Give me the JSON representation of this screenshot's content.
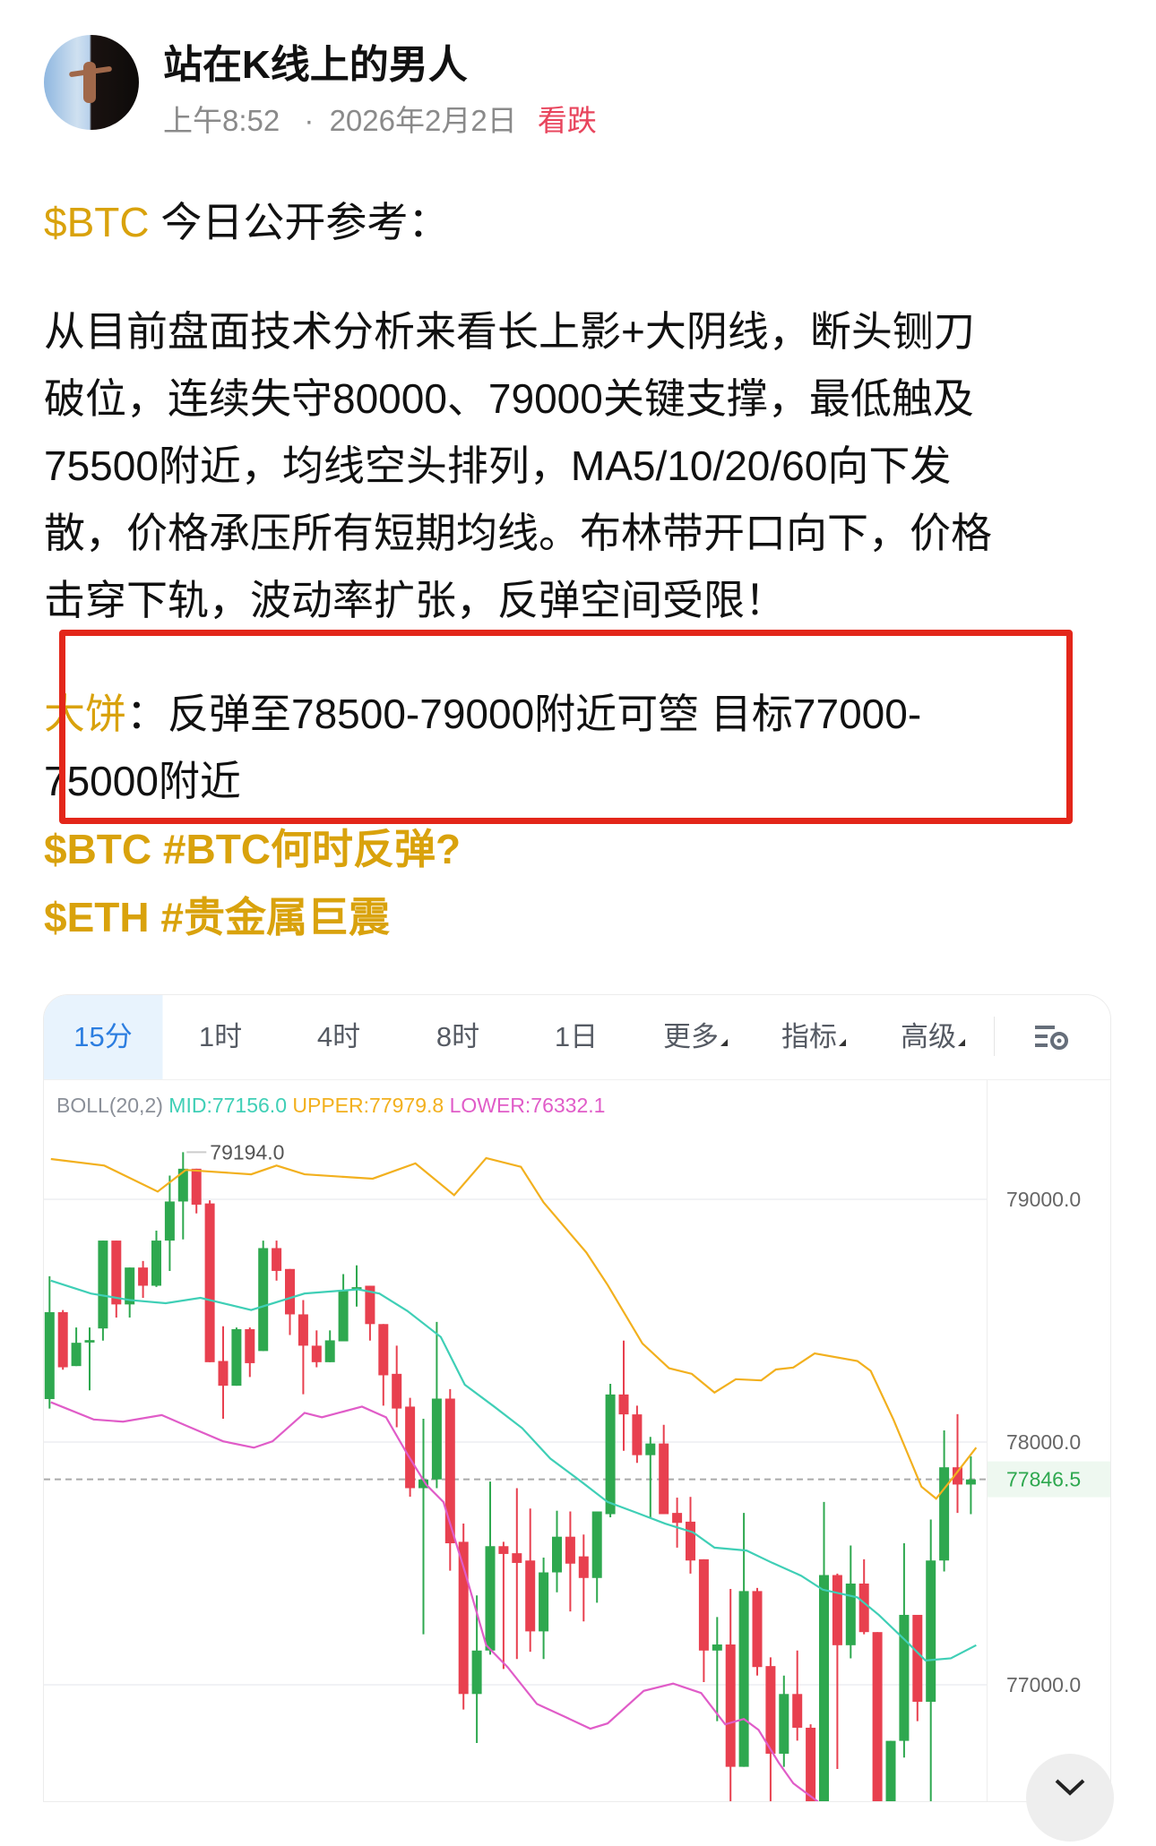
{
  "post": {
    "author": "站在K线上的男人",
    "time": "上午8:52",
    "separator": "·",
    "date": "2026年2月2日",
    "sentiment": "看跌",
    "intro_ticker": "$BTC",
    "intro_text": " 今日公开参考：",
    "analysis_lines": [
      "从目前盘面技术分析来看长上影+大阴线，断头铡刀",
      "破位，连续失守80000、79000关键支撑，最低触及",
      "75500附近，均线空头排列，MA5/10/20/60向下发",
      "散，价格承压所有短期均线。布林带开口向下，价格",
      "击穿下轨，波动率扩张，反弹空间受限！"
    ],
    "target_label": "大饼",
    "target_lines": [
      "：反弹至78500-79000附近可箜 目标77000-",
      "75000附近"
    ],
    "tags": [
      "$BTC #BTC何时反弹?",
      "$ETH #贵金属巨震"
    ]
  },
  "colors": {
    "gold": "#d9a20c",
    "bearish": "#e8455d",
    "highlight_box": "#e3261a",
    "up": "#2ea84f",
    "down": "#e8404f",
    "mid": "#3fcfb6",
    "upper": "#f2b01e",
    "lower": "#e05cc8"
  },
  "chart_tabs": [
    {
      "label": "15分",
      "active": true
    },
    {
      "label": "1时"
    },
    {
      "label": "4时"
    },
    {
      "label": "8时"
    },
    {
      "label": "1日"
    },
    {
      "label": "更多",
      "dropdown": true
    },
    {
      "label": "指标",
      "dropdown": true
    },
    {
      "label": "高级",
      "dropdown": true
    }
  ],
  "chart_settings_icon": "chart-settings-icon",
  "close_icon": "chevron-down-icon",
  "chart_data": {
    "type": "candlestick",
    "indicator": "BOLL(20,2)",
    "legend": {
      "mid": "MID:77156.0",
      "upper": "UPPER:77979.8",
      "lower": "LOWER:76332.1"
    },
    "y_ticks": [
      "79000.0",
      "78000.0",
      "77000.0"
    ],
    "current_price": "77846.5",
    "high_label": "79194.0",
    "candles": [
      [
        78177,
        78683,
        78138,
        78535
      ],
      [
        78535,
        78544,
        78298,
        78308
      ],
      [
        78313,
        78472,
        78313,
        78409
      ],
      [
        78410,
        78472,
        78213,
        78420
      ],
      [
        78468,
        78830,
        78418,
        78830
      ],
      [
        78830,
        78830,
        78513,
        78567
      ],
      [
        78567,
        78719,
        78513,
        78719
      ],
      [
        78719,
        78746,
        78594,
        78644
      ],
      [
        78644,
        78871,
        78639,
        78830
      ],
      [
        78830,
        79098,
        78705,
        78991
      ],
      [
        78991,
        79194,
        78835,
        79126
      ],
      [
        79126,
        79126,
        78942,
        78978
      ],
      [
        78983,
        78996,
        78329,
        78329
      ],
      [
        78334,
        78477,
        78096,
        78232
      ],
      [
        78232,
        78472,
        78232,
        78465
      ],
      [
        78465,
        78472,
        78268,
        78325
      ],
      [
        78375,
        78830,
        78375,
        78799
      ],
      [
        78799,
        78830,
        78665,
        78705
      ],
      [
        78713,
        78713,
        78441,
        78526
      ],
      [
        78526,
        78585,
        78197,
        78397
      ],
      [
        78397,
        78460,
        78308,
        78329
      ],
      [
        78329,
        78460,
        78329,
        78419
      ],
      [
        78415,
        78692,
        78415,
        78626
      ],
      [
        78626,
        78728,
        78558,
        78638
      ],
      [
        78644,
        78644,
        78418,
        78486
      ],
      [
        78486,
        78486,
        78150,
        78275
      ],
      [
        78281,
        78397,
        78061,
        78138
      ],
      [
        78146,
        78182,
        77775,
        77810
      ],
      [
        77810,
        78096,
        77208,
        77846
      ],
      [
        77846,
        78495,
        77810,
        78179
      ],
      [
        78179,
        78218,
        77470,
        77583
      ],
      [
        77589,
        77664,
        76898,
        76962
      ],
      [
        76962,
        77368,
        76760,
        77141
      ],
      [
        77141,
        77837,
        77124,
        77571
      ],
      [
        77571,
        77589,
        77065,
        77539
      ],
      [
        77542,
        77810,
        77106,
        77502
      ],
      [
        77512,
        77726,
        77136,
        77220
      ],
      [
        77220,
        77524,
        77106,
        77463
      ],
      [
        77463,
        77717,
        77381,
        77610
      ],
      [
        77610,
        77714,
        77302,
        77499
      ],
      [
        77529,
        77619,
        77261,
        77440
      ],
      [
        77440,
        77714,
        77338,
        77714
      ],
      [
        77703,
        78240,
        77690,
        78196
      ],
      [
        78196,
        78418,
        77964,
        78114
      ],
      [
        78114,
        78150,
        77914,
        77946
      ],
      [
        77946,
        78021,
        77690,
        77994
      ],
      [
        77994,
        78071,
        77703,
        77703
      ],
      [
        77708,
        77771,
        77565,
        77667
      ],
      [
        77672,
        77774,
        77458,
        77512
      ],
      [
        77517,
        77517,
        77011,
        77141
      ],
      [
        77141,
        77279,
        76850,
        77166
      ],
      [
        77166,
        77395,
        76500,
        76662
      ],
      [
        76662,
        77708,
        76662,
        77386
      ],
      [
        77386,
        77399,
        77038,
        77073
      ],
      [
        77077,
        77113,
        76500,
        76716
      ],
      [
        76716,
        77038,
        76662,
        76962
      ],
      [
        76962,
        77141,
        76770,
        76823
      ],
      [
        76823,
        76837,
        76400,
        76500
      ],
      [
        76500,
        77753,
        76400,
        77452
      ],
      [
        77452,
        77458,
        76653,
        77163
      ],
      [
        77163,
        77574,
        77109,
        77417
      ],
      [
        77417,
        77517,
        77208,
        77217
      ],
      [
        77217,
        77217,
        76400,
        76500
      ],
      [
        76500,
        76769,
        76400,
        76769
      ],
      [
        76769,
        77583,
        76700,
        77288
      ],
      [
        77288,
        77288,
        76850,
        76930
      ],
      [
        76930,
        77681,
        76400,
        77512
      ],
      [
        77512,
        78048,
        77467,
        77896
      ],
      [
        77896,
        78115,
        77708,
        77825
      ],
      [
        77825,
        77941,
        77703,
        77846
      ]
    ],
    "upper_band": [
      [
        0.1,
        79166
      ],
      [
        4.1,
        79139
      ],
      [
        8.1,
        79032
      ],
      [
        10.2,
        79121
      ],
      [
        15.1,
        79103
      ],
      [
        17,
        79139
      ],
      [
        19.1,
        79103
      ],
      [
        24.2,
        79085
      ],
      [
        27.4,
        79148
      ],
      [
        30.3,
        79017
      ],
      [
        32.7,
        79170
      ],
      [
        35.3,
        79134
      ],
      [
        37,
        78987
      ],
      [
        40.2,
        78781
      ],
      [
        41.8,
        78647
      ],
      [
        44.4,
        78406
      ],
      [
        46.4,
        78304
      ],
      [
        48.1,
        78281
      ],
      [
        49.8,
        78204
      ],
      [
        51.4,
        78259
      ],
      [
        53.3,
        78254
      ],
      [
        54.4,
        78299
      ],
      [
        55.7,
        78307
      ],
      [
        57.3,
        78365
      ],
      [
        60.5,
        78334
      ],
      [
        61.5,
        78293
      ],
      [
        63.2,
        78093
      ],
      [
        65.3,
        77816
      ],
      [
        66.4,
        77767
      ],
      [
        67.5,
        77842
      ],
      [
        69.4,
        77977
      ]
    ],
    "mid_band": [
      [
        0.1,
        78665
      ],
      [
        3.1,
        78612
      ],
      [
        6,
        78585
      ],
      [
        8.7,
        78572
      ],
      [
        11.3,
        78594
      ],
      [
        15.1,
        78544
      ],
      [
        19.1,
        78612
      ],
      [
        23.1,
        78629
      ],
      [
        24.7,
        78612
      ],
      [
        26.8,
        78540
      ],
      [
        29.3,
        78433
      ],
      [
        31.1,
        78236
      ],
      [
        33.3,
        78146
      ],
      [
        35.4,
        78057
      ],
      [
        37.5,
        77932
      ],
      [
        39.7,
        77842
      ],
      [
        41.8,
        77753
      ],
      [
        44,
        77708
      ],
      [
        46.1,
        77664
      ],
      [
        48.2,
        77628
      ],
      [
        49.8,
        77565
      ],
      [
        52.2,
        77553
      ],
      [
        54.1,
        77503
      ],
      [
        56.3,
        77449
      ],
      [
        57.9,
        77392
      ],
      [
        60.5,
        77360
      ],
      [
        62.1,
        77288
      ],
      [
        64.3,
        77172
      ],
      [
        65.6,
        77100
      ],
      [
        67.5,
        77109
      ],
      [
        69.4,
        77163
      ]
    ],
    "lower_band": [
      [
        0.1,
        78164
      ],
      [
        3.3,
        78093
      ],
      [
        5.5,
        78084
      ],
      [
        8.4,
        78111
      ],
      [
        10.3,
        78066
      ],
      [
        13,
        78003
      ],
      [
        15.3,
        77977
      ],
      [
        16.7,
        78003
      ],
      [
        19.1,
        78120
      ],
      [
        20.4,
        78102
      ],
      [
        23.4,
        78146
      ],
      [
        25.2,
        78102
      ],
      [
        26.8,
        77950
      ],
      [
        28.2,
        77825
      ],
      [
        29.5,
        77753
      ],
      [
        31.1,
        77467
      ],
      [
        32.7,
        77163
      ],
      [
        34.3,
        77073
      ],
      [
        36.5,
        76921
      ],
      [
        38.6,
        76868
      ],
      [
        40.5,
        76819
      ],
      [
        41.8,
        76841
      ],
      [
        44.5,
        76975
      ],
      [
        46.7,
        77005
      ],
      [
        48.8,
        76966
      ],
      [
        50.6,
        76837
      ],
      [
        52,
        76859
      ],
      [
        53.1,
        76814
      ],
      [
        54.6,
        76680
      ],
      [
        55.7,
        76594
      ],
      [
        58,
        76500
      ],
      [
        69.4,
        76332
      ]
    ]
  }
}
